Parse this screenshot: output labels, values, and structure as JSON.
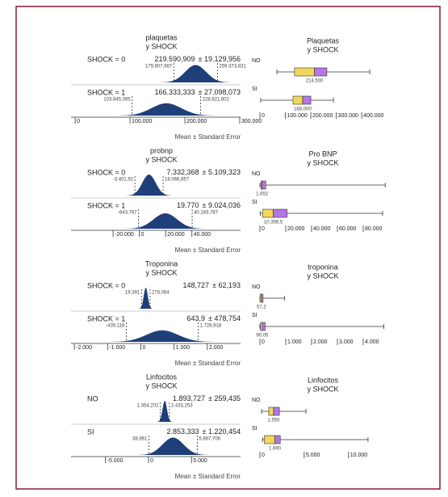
{
  "chart_data": [
    {
      "type": "density",
      "title": "plaquetas",
      "subtitle": "y SHOCK",
      "xlabel": "Mean ± Standard Error",
      "curve_color": "#1f3f7a",
      "xlim": [
        -7500,
        301500
      ],
      "xticks": [
        {
          "value": 0,
          "label": "0"
        },
        {
          "value": 100000,
          "label": "100.000"
        },
        {
          "value": 200000,
          "label": "200.000"
        },
        {
          "value": 300000,
          "label": "300.000"
        }
      ],
      "groups": [
        {
          "name": "SHOCK = 0",
          "mean": {
            "value": 219590.909,
            "label": "219.590,909"
          },
          "se": {
            "value": 19129.956,
            "label": "± 19.129,956"
          },
          "ci": [
            {
              "value": 179807.987,
              "label": "179.807,987"
            },
            {
              "value": 259373.831,
              "label": "259.373,831"
            }
          ]
        },
        {
          "name": "SHOCK = 1",
          "mean": {
            "value": 166333.333,
            "label": "166.333,333"
          },
          "se": {
            "value": 27098.073,
            "label": "± 27.098,073"
          },
          "ci": [
            {
              "value": 103845.065,
              "label": "103.845,065"
            },
            {
              "value": 228821.602,
              "label": "228.821,602"
            }
          ]
        }
      ]
    },
    {
      "type": "box",
      "title": "Plaquetas",
      "subtitle": "y SHOCK",
      "colors": [
        "#f2d75b",
        "#b576e6"
      ],
      "xlim": [
        -12700,
        533000
      ],
      "xticks": [
        {
          "value": 0,
          "label": "0"
        },
        {
          "value": 100000,
          "label": "100.000"
        },
        {
          "value": 200000,
          "label": "200.000"
        },
        {
          "value": 300000,
          "label": "300.000"
        },
        {
          "value": 400000,
          "label": "400.000"
        }
      ],
      "groups": [
        {
          "name": "NO",
          "min": 67000,
          "q1": 136000,
          "median": {
            "value": 214500,
            "label": "214.500"
          },
          "q3": 263000,
          "max": 432000
        },
        {
          "name": "SI",
          "min": 3000,
          "q1": 130000,
          "median": {
            "value": 168000,
            "label": "168.000"
          },
          "q3": 200000,
          "max": 289000
        }
      ]
    },
    {
      "type": "density",
      "title": "probnp",
      "subtitle": "y SHOCK",
      "xlabel": "Mean ± Standard Error",
      "curve_color": "#1f3f7a",
      "xlim": [
        -52000,
        77000
      ],
      "xticks": [
        {
          "value": -20000,
          "label": "-20.000"
        },
        {
          "value": 0,
          "label": "0"
        },
        {
          "value": 20000,
          "label": "20.000"
        },
        {
          "value": 40000,
          "label": "40.000"
        }
      ],
      "groups": [
        {
          "name": "SHOCK = 0",
          "mean": {
            "value": 7332.368,
            "label": "7.332,368"
          },
          "se": {
            "value": 5109.323,
            "label": "± 5.109,323"
          },
          "ci": [
            {
              "value": -3401.92,
              "label": "-3.401,92"
            },
            {
              "value": 18066.657,
              "label": "18.066,657"
            }
          ]
        },
        {
          "name": "SHOCK = 1",
          "mean": {
            "value": 19770,
            "label": "19.770"
          },
          "se": {
            "value": 9024.036,
            "label": "± 9.024,036"
          },
          "ci": [
            {
              "value": -643.767,
              "label": "-643,767"
            },
            {
              "value": 40183.787,
              "label": "40.183,787"
            }
          ]
        }
      ]
    },
    {
      "type": "box",
      "title": "Pro BNP",
      "subtitle": "y SHOCK",
      "colors": [
        "#f2d75b",
        "#b576e6"
      ],
      "xlim": [
        -2500,
        105000
      ],
      "xticks": [
        {
          "value": 0,
          "label": "0"
        },
        {
          "value": 20000,
          "label": "20.000"
        },
        {
          "value": 40000,
          "label": "40.000"
        },
        {
          "value": 60000,
          "label": "60.000"
        },
        {
          "value": 80000,
          "label": "80.000"
        }
      ],
      "groups": [
        {
          "name": "NO",
          "min": 0,
          "q1": 800,
          "median": {
            "value": 1652,
            "label": "1.652"
          },
          "q3": 4500,
          "max": 97000
        },
        {
          "name": "SI",
          "min": 200,
          "q1": 2000,
          "median": {
            "value": 10356.5,
            "label": "10.356,5"
          },
          "q3": 21000,
          "max": 95000
        }
      ]
    },
    {
      "type": "density",
      "title": "Troponina",
      "subtitle": "y SHOCK",
      "xlabel": "Mean ± Standard Error",
      "curve_color": "#1f3f7a",
      "xlim": [
        -2100,
        3000
      ],
      "xticks": [
        {
          "value": -2000,
          "label": "-2.000"
        },
        {
          "value": -1000,
          "label": "-1.000"
        },
        {
          "value": 0,
          "label": "0"
        },
        {
          "value": 1000,
          "label": "1.000"
        },
        {
          "value": 2000,
          "label": "2.000"
        }
      ],
      "groups": [
        {
          "name": "SHOCK = 0",
          "mean": {
            "value": 148.727,
            "label": "148,727"
          },
          "se": {
            "value": 62.193,
            "label": "± 62,193"
          },
          "ci": [
            {
              "value": 19.391,
              "label": "19,391"
            },
            {
              "value": 278.064,
              "label": "278,064"
            }
          ]
        },
        {
          "name": "SHOCK = 1",
          "mean": {
            "value": 643.9,
            "label": "643,9"
          },
          "se": {
            "value": 478.754,
            "label": "± 478,754"
          },
          "ci": [
            {
              "value": -439.118,
              "label": "-439,118"
            },
            {
              "value": 1726.918,
              "label": "1.726,918"
            }
          ]
        }
      ]
    },
    {
      "type": "box",
      "title": "troponina",
      "subtitle": "y SHOCK",
      "colors": [
        "#f2d75b",
        "#b576e6"
      ],
      "xlim": [
        -125,
        5250
      ],
      "xticks": [
        {
          "value": 0,
          "label": "0"
        },
        {
          "value": 1000,
          "label": "1.000"
        },
        {
          "value": 2000,
          "label": "2.000"
        },
        {
          "value": 3000,
          "label": "3.000"
        },
        {
          "value": 4000,
          "label": "4.000"
        }
      ],
      "groups": [
        {
          "name": "NO",
          "min": 2,
          "q1": 5,
          "median": {
            "value": 57.2,
            "label": "57,2"
          },
          "q3": 120,
          "max": 950
        },
        {
          "name": "SI",
          "min": 0,
          "q1": 20,
          "median": {
            "value": 90.05,
            "label": "90,05"
          },
          "q3": 200,
          "max": 4800
        }
      ]
    },
    {
      "type": "density",
      "title": "Linfocitos",
      "subtitle": "y SHOCK",
      "xlabel": "Mean ± Standard Error",
      "curve_color": "#1f3f7a",
      "xlim": [
        -9000,
        10700
      ],
      "xticks": [
        {
          "value": -5000,
          "label": "-5.000"
        },
        {
          "value": 0,
          "label": "0"
        },
        {
          "value": 5000,
          "label": "5.000"
        }
      ],
      "groups": [
        {
          "name": "NO",
          "mean": {
            "value": 1893.727,
            "label": "1.893,727"
          },
          "se": {
            "value": 259.435,
            "label": "± 259,435"
          },
          "ci": [
            {
              "value": 1354.202,
              "label": "1.354,202"
            },
            {
              "value": 2433.253,
              "label": "2.433,253"
            }
          ]
        },
        {
          "name": "SI",
          "mean": {
            "value": 2853.333,
            "label": "2.853,333"
          },
          "se": {
            "value": 1220.454,
            "label": "± 1.220,454"
          },
          "ci": [
            {
              "value": 38.961,
              "label": "38,961"
            },
            {
              "value": 5667.706,
              "label": "5.667,706"
            }
          ]
        }
      ]
    },
    {
      "type": "box",
      "title": "Linfocitos",
      "subtitle": "y SHOCK",
      "colors": [
        "#f2d75b",
        "#b576e6"
      ],
      "xlim": [
        -360,
        15300
      ],
      "xticks": [
        {
          "value": 0,
          "label": "0"
        },
        {
          "value": 5000,
          "label": "5.000"
        },
        {
          "value": 10000,
          "label": "10.000"
        }
      ],
      "groups": [
        {
          "name": "NO",
          "min": 200,
          "q1": 1000,
          "median": {
            "value": 1550,
            "label": "1.550"
          },
          "q3": 2200,
          "max": 5200
        },
        {
          "name": "SI",
          "min": 300,
          "q1": 500,
          "median": {
            "value": 1690,
            "label": "1.690"
          },
          "q3": 2300,
          "max": 12200
        }
      ]
    }
  ]
}
